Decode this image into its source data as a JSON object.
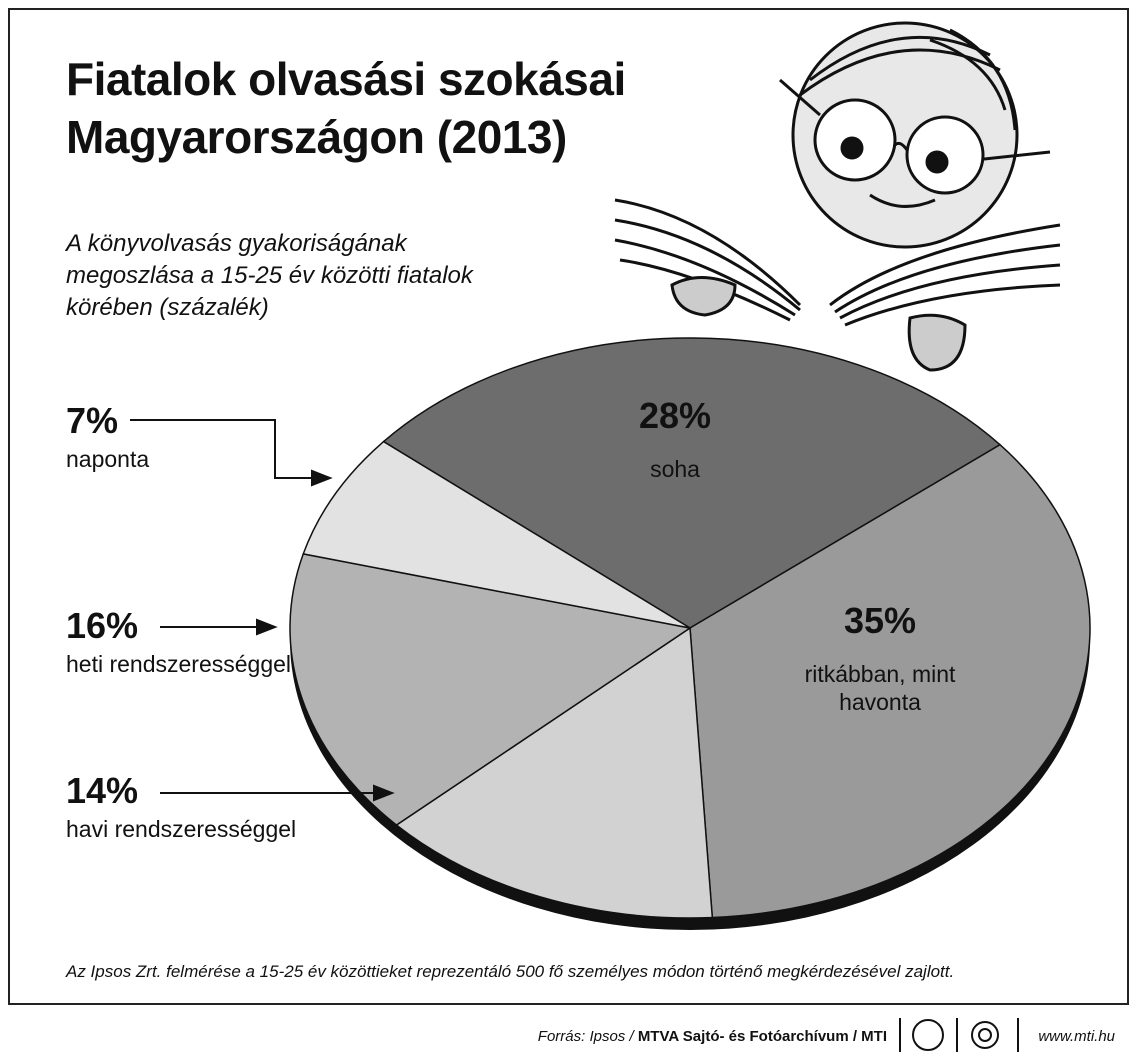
{
  "chart_data": {
    "type": "pie",
    "title": "Fiatalok olvasási szokásai Magyarországon (2013)",
    "subtitle": "A könyvolvasás gyakoriságának megoszlása a 15-25 év közötti fiatalok körében (százalék)",
    "categories": [
      "soha",
      "ritkábban, mint havonta",
      "havi rendszerességgel",
      "heti rendszerességgel",
      "naponta"
    ],
    "values": [
      28,
      35,
      14,
      16,
      7
    ],
    "value_labels": [
      "28%",
      "35%",
      "14%",
      "16%",
      "7%"
    ],
    "colors": [
      "#6d6d6d",
      "#9a9a9a",
      "#d2d2d2",
      "#b3b3b3",
      "#e2e2e2"
    ],
    "note": "Az Ipsos Zrt. felmérése a 15-25 év közöttieket reprezentáló 500 fő személyes módon történő megkérdezésével zajlott.",
    "source": "Forrás: Ipsos /",
    "source_bold": "MTVA Sajtó- és Fotóarchívum / MTI",
    "website": "www.mti.hu"
  }
}
